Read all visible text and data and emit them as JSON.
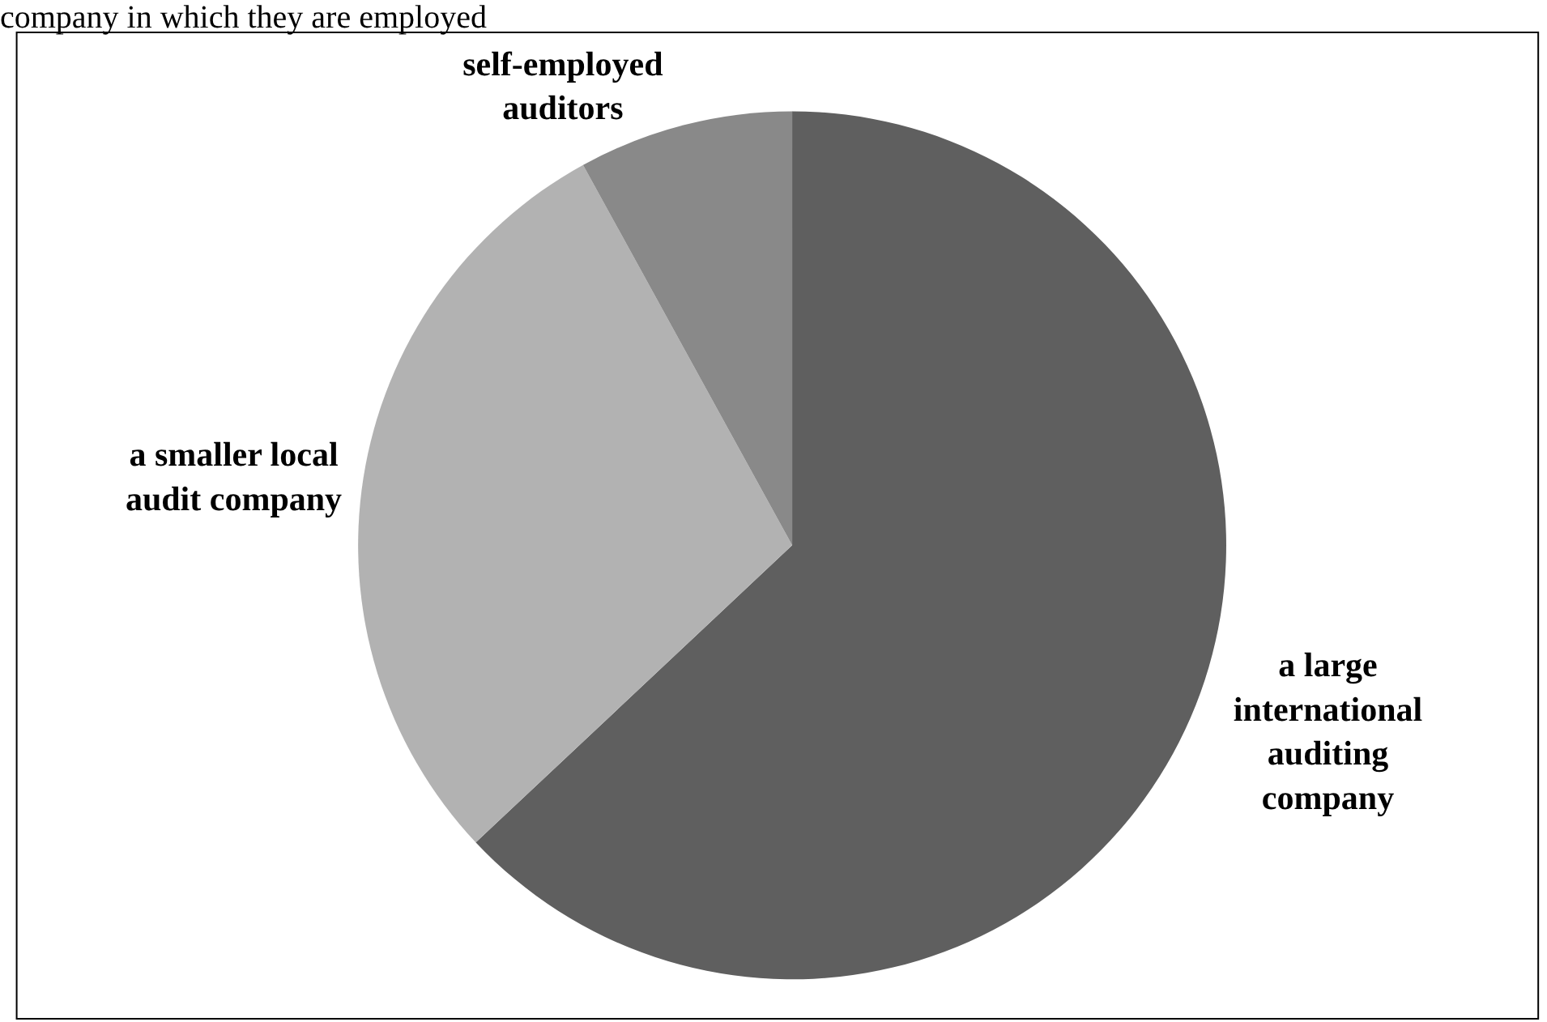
{
  "chart_data": {
    "type": "pie",
    "title": "company in which they are employed",
    "categories": [
      "a large international auditing company",
      "a smaller local audit company",
      "self-employed auditors"
    ],
    "values": [
      63,
      29,
      8
    ],
    "colors": [
      "#5f5f5f",
      "#b2b2b2",
      "#898989"
    ],
    "legend": false
  }
}
